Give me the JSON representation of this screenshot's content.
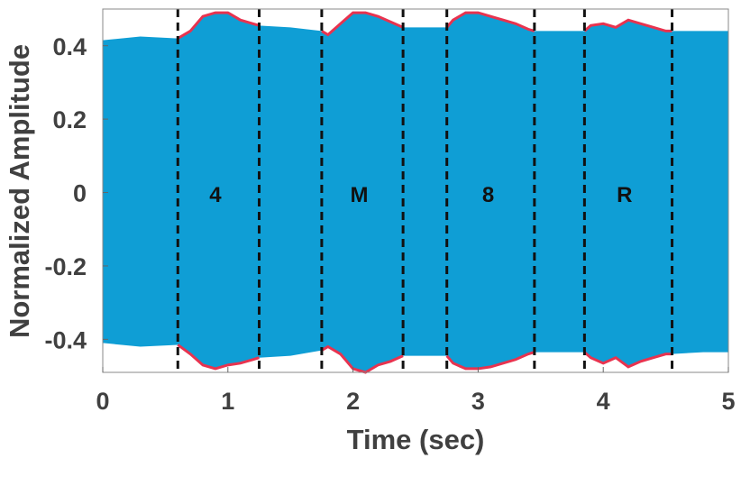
{
  "chart_data": {
    "type": "area",
    "xlabel": "Time (sec)",
    "ylabel": "Normalized Amplitude",
    "x": [
      0,
      0.3,
      0.6,
      0.7,
      0.8,
      0.9,
      1.0,
      1.1,
      1.2,
      1.25,
      1.5,
      1.75,
      1.8,
      1.9,
      2.0,
      2.1,
      2.2,
      2.3,
      2.4,
      2.6,
      2.75,
      2.8,
      2.9,
      3.0,
      3.1,
      3.2,
      3.3,
      3.4,
      3.45,
      3.65,
      3.85,
      3.9,
      4.0,
      4.1,
      4.2,
      4.3,
      4.4,
      4.5,
      4.55,
      4.8,
      5.0
    ],
    "series": [
      {
        "color": "#0f9ed5",
        "values": [
          0.415,
          0.425,
          0.42,
          0.44,
          0.48,
          0.49,
          0.49,
          0.47,
          0.46,
          0.455,
          0.45,
          0.44,
          0.43,
          0.46,
          0.49,
          0.49,
          0.48,
          0.465,
          0.45,
          0.45,
          0.45,
          0.47,
          0.49,
          0.49,
          0.48,
          0.47,
          0.46,
          0.445,
          0.44,
          0.44,
          0.44,
          0.455,
          0.46,
          0.45,
          0.47,
          0.46,
          0.45,
          0.44,
          0.44,
          0.44,
          0.44
        ],
        "lower": [
          -0.41,
          -0.42,
          -0.415,
          -0.44,
          -0.47,
          -0.48,
          -0.47,
          -0.465,
          -0.455,
          -0.45,
          -0.445,
          -0.43,
          -0.42,
          -0.44,
          -0.48,
          -0.49,
          -0.47,
          -0.46,
          -0.445,
          -0.445,
          -0.445,
          -0.465,
          -0.48,
          -0.48,
          -0.475,
          -0.465,
          -0.455,
          -0.44,
          -0.435,
          -0.435,
          -0.435,
          -0.45,
          -0.465,
          -0.45,
          -0.475,
          -0.46,
          -0.45,
          -0.44,
          -0.44,
          -0.435,
          -0.435
        ]
      }
    ],
    "envelope_color": "#e8334f",
    "boundaries": [
      0.6,
      1.25,
      1.75,
      2.4,
      2.75,
      3.45,
      3.85,
      4.55
    ],
    "annotations": [
      {
        "text": "4",
        "x": 0.9,
        "y": 0
      },
      {
        "text": "M",
        "x": 2.05,
        "y": 0
      },
      {
        "text": "8",
        "x": 3.08,
        "y": 0
      },
      {
        "text": "R",
        "x": 4.17,
        "y": 0
      }
    ],
    "xlim": [
      0,
      5
    ],
    "xticks": [
      0,
      1,
      2,
      3,
      4,
      5
    ],
    "ylim": [
      -0.49,
      0.5
    ],
    "yticks": [
      -0.4,
      -0.2,
      0,
      0.2,
      0.4
    ]
  }
}
